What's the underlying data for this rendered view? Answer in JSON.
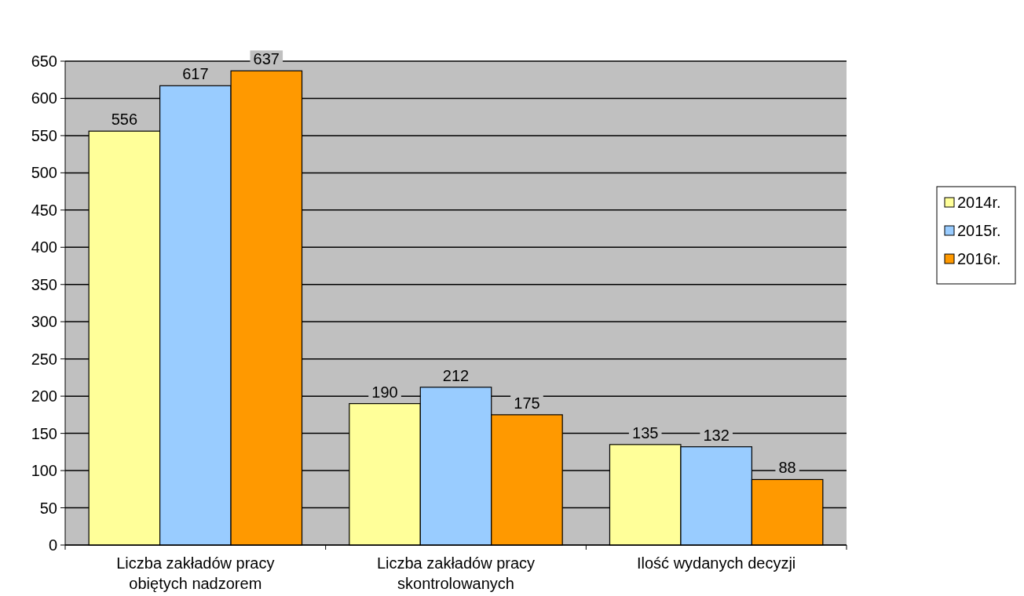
{
  "chart_data": {
    "type": "bar",
    "categories": [
      "Liczba zakładów pracy obiętych nadzorem",
      "Liczba zakładów pracy skontrolowanych",
      "Ilość wydanych decyzji"
    ],
    "series": [
      {
        "name": "2014r.",
        "color": "#ffff99",
        "values": [
          556,
          190,
          135
        ]
      },
      {
        "name": "2015r.",
        "color": "#99ccff",
        "values": [
          617,
          212,
          132
        ]
      },
      {
        "name": "2016r.",
        "color": "#ff9900",
        "values": [
          637,
          175,
          88
        ]
      }
    ],
    "ylim": [
      0,
      650
    ],
    "yticks": [
      0,
      50,
      100,
      150,
      200,
      250,
      300,
      350,
      400,
      450,
      500,
      550,
      600,
      650
    ],
    "grid": "y",
    "legend": "right",
    "data_labels": true
  }
}
